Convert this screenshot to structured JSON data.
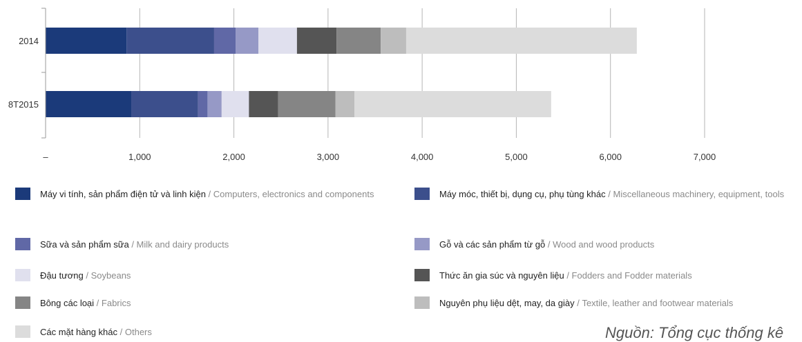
{
  "chart_data": {
    "type": "bar",
    "orientation": "horizontal",
    "stacked": true,
    "categories": [
      "2014",
      "8T2015"
    ],
    "series": [
      {
        "name": "Máy vi tính, sản phẩm điện tử và linh kiện",
        "name_en": "Computers, electronics and components",
        "color": "#1b3a7a",
        "values": [
          860,
          910
        ]
      },
      {
        "name": "Máy móc, thiết bị, dụng cụ, phụ tùng khác",
        "name_en": "Miscellaneous machinery, equipment, tools",
        "color": "#3c4f8c",
        "values": [
          930,
          710
        ]
      },
      {
        "name": "Sữa và sản phẩm sữa",
        "name_en": "Milk and dairy products",
        "color": "#6068a6",
        "values": [
          230,
          100
        ]
      },
      {
        "name": "Gỗ và các sản phẩm từ gỗ",
        "name_en": "Wood and wood products",
        "color": "#9699c6",
        "values": [
          240,
          150
        ]
      },
      {
        "name": "Đậu tương",
        "name_en": "Soybeans",
        "color": "#e0e0ee",
        "values": [
          410,
          290
        ]
      },
      {
        "name": "Thức ăn gia súc và nguyên liệu",
        "name_en": "Fodders and Fodder materials",
        "color": "#555555",
        "values": [
          420,
          310
        ]
      },
      {
        "name": "Bông các loại",
        "name_en": "Fabrics",
        "color": "#858585",
        "values": [
          470,
          610
        ]
      },
      {
        "name": "Nguyên phụ liệu dệt, may, da giày",
        "name_en": "Textile, leather and footwear materials",
        "color": "#bdbdbd",
        "values": [
          270,
          200
        ]
      },
      {
        "name": "Các mặt hàng khác",
        "name_en": "Others",
        "color": "#dcdcdc",
        "values": [
          2450,
          2090
        ]
      }
    ],
    "xlim": [
      0,
      7000
    ],
    "xticks": [
      "–",
      "1,000",
      "2,000",
      "3,000",
      "4,000",
      "5,000",
      "6,000",
      "7,000"
    ],
    "grid": true,
    "legend_position": "bottom"
  },
  "source": "Nguồn: Tổng cục thống kê"
}
